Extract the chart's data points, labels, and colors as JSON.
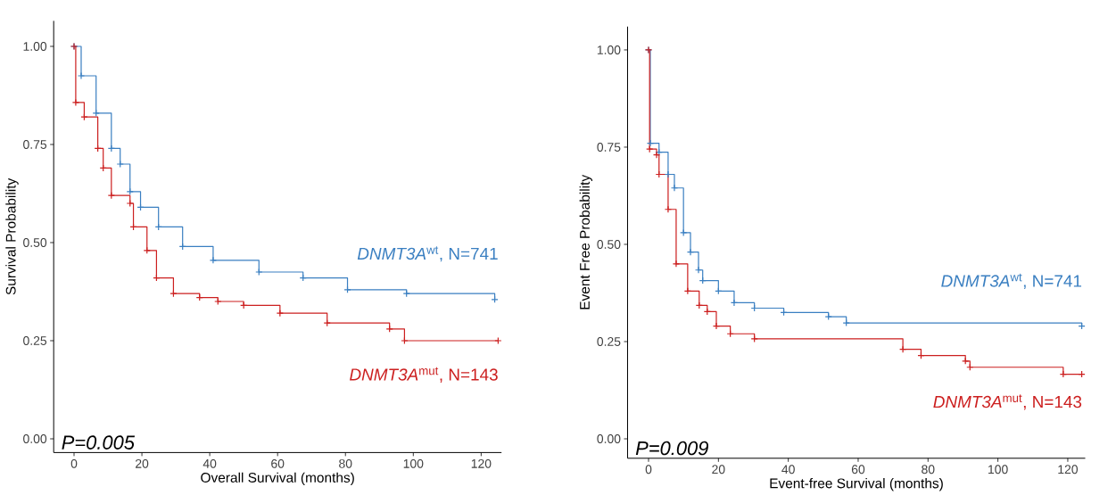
{
  "chart_data": [
    {
      "type": "step",
      "xlabel": "Overall Survival (months)",
      "ylabel": "Survival Probability",
      "xlim": [
        -6,
        126
      ],
      "ylim": [
        -0.035,
        1.065
      ],
      "xticks": [
        0,
        20,
        40,
        60,
        80,
        100,
        120
      ],
      "yticks": [
        {
          "value": 0,
          "label": "0.00"
        },
        {
          "value": 0.25,
          "label": "0.25"
        },
        {
          "value": 0.5,
          "label": "0.50"
        },
        {
          "value": 0.75,
          "label": "0.75"
        },
        {
          "value": 1,
          "label": "1.00"
        }
      ],
      "marker": "cross",
      "line_style": "solid",
      "annotations": [
        "P=0.005"
      ],
      "series": [
        {
          "name": "*DNMT3A*$^{wt}$, N=741",
          "color": "#3a7fc1",
          "x": [
            0,
            2.1,
            6.5,
            11,
            13.6,
            16.5,
            19.6,
            24.9,
            32,
            41,
            54.5,
            67.5,
            80.6,
            98,
            124
          ],
          "values": [
            1.0,
            0.925,
            0.83,
            0.74,
            0.7,
            0.63,
            0.59,
            0.54,
            0.49,
            0.455,
            0.425,
            0.41,
            0.38,
            0.37,
            0.355
          ]
        },
        {
          "name": "*DNMT3A*$^{mut}$, N=143",
          "color": "#cc1f1f",
          "x": [
            0,
            0.5,
            3,
            7,
            8.6,
            11,
            16.5,
            17.5,
            21.5,
            24.3,
            29.3,
            37,
            42.4,
            50,
            60.7,
            74.6,
            93,
            97.4,
            125
          ],
          "values": [
            1.0,
            0.857,
            0.82,
            0.74,
            0.69,
            0.62,
            0.6,
            0.54,
            0.48,
            0.41,
            0.37,
            0.36,
            0.35,
            0.34,
            0.32,
            0.295,
            0.28,
            0.25,
            0.25
          ]
        }
      ]
    },
    {
      "type": "step",
      "xlabel": "Event-free Survival (months)",
      "ylabel": "Event Free Probability",
      "xlim": [
        -6,
        125
      ],
      "ylim": [
        -0.05,
        1.06
      ],
      "xticks": [
        0,
        20,
        40,
        60,
        80,
        100,
        120
      ],
      "yticks": [
        {
          "value": 0,
          "label": "0.00"
        },
        {
          "value": 0.25,
          "label": "0.25"
        },
        {
          "value": 0.5,
          "label": "0.50"
        },
        {
          "value": 0.75,
          "label": "0.75"
        },
        {
          "value": 1,
          "label": "1.00"
        }
      ],
      "marker": "cross",
      "line_style": "solid",
      "annotations": [
        "P=0.009"
      ],
      "series": [
        {
          "name": "*DNMT3A*$^{wt}$, N=741",
          "color": "#3a7fc1",
          "x": [
            0,
            0.5,
            3,
            5.6,
            7.4,
            10,
            12,
            14.3,
            15.5,
            20,
            24.5,
            30.3,
            38.7,
            51.5,
            56.6,
            124
          ],
          "values": [
            1.0,
            0.76,
            0.737,
            0.68,
            0.645,
            0.53,
            0.48,
            0.434,
            0.407,
            0.38,
            0.35,
            0.336,
            0.325,
            0.314,
            0.298,
            0.29
          ]
        },
        {
          "name": "*DNMT3A*$^{mut}$, N=143",
          "color": "#cc1f1f",
          "x": [
            0,
            0.3,
            2.3,
            3,
            5.6,
            7.9,
            11.2,
            14.5,
            16.8,
            19.4,
            23.4,
            30.3,
            72.8,
            78,
            90.7,
            92,
            118.7,
            124
          ],
          "values": [
            1.0,
            0.745,
            0.73,
            0.68,
            0.59,
            0.45,
            0.38,
            0.343,
            0.327,
            0.29,
            0.27,
            0.257,
            0.23,
            0.214,
            0.2,
            0.184,
            0.166,
            0.166
          ]
        }
      ]
    }
  ]
}
